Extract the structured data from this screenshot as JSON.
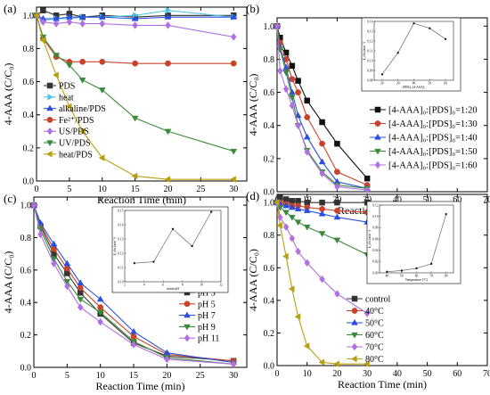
{
  "chart_data": [
    {
      "panel": "(a)",
      "type": "line",
      "xlabel": "Reaction Time (min)",
      "ylabel": "4-AAA (C/C₀)",
      "xlim": [
        0,
        32
      ],
      "ylim": [
        0,
        1.05
      ],
      "xticks": [
        0,
        5,
        10,
        15,
        20,
        25,
        30
      ],
      "yticks": [
        0.0,
        0.2,
        0.4,
        0.6,
        0.8,
        1.0
      ],
      "legend_position": "left-middle",
      "series": [
        {
          "name": "PDS",
          "color": "#333333",
          "marker": "square",
          "x": [
            0,
            1,
            3,
            5,
            7,
            10,
            15,
            20,
            30
          ],
          "y": [
            1.0,
            1.03,
            1.0,
            1.01,
            0.99,
            1.0,
            0.99,
            1.0,
            1.0
          ]
        },
        {
          "name": "heat",
          "color": "#4fc8e8",
          "marker": "triangle-right",
          "x": [
            0,
            1,
            3,
            5,
            7,
            10,
            15,
            20,
            30
          ],
          "y": [
            1.0,
            0.97,
            0.98,
            0.98,
            0.99,
            0.99,
            1.0,
            1.03,
            0.99
          ]
        },
        {
          "name": "alkaline/PDS",
          "color": "#2a4fe0",
          "marker": "triangle-up",
          "x": [
            0,
            1,
            3,
            5,
            7,
            10,
            15,
            20,
            30
          ],
          "y": [
            1.0,
            0.98,
            0.98,
            0.99,
            0.99,
            0.99,
            0.98,
            0.99,
            0.99
          ]
        },
        {
          "name": "Fe²⁺/PDS",
          "color": "#c9432a",
          "marker": "circle",
          "x": [
            0,
            1,
            3,
            5,
            7,
            10,
            15,
            20,
            30
          ],
          "y": [
            1.0,
            0.86,
            0.75,
            0.72,
            0.72,
            0.72,
            0.71,
            0.71,
            0.71
          ]
        },
        {
          "name": "US/PDS",
          "color": "#b070e0",
          "marker": "diamond",
          "x": [
            0,
            1,
            3,
            5,
            7,
            10,
            15,
            20,
            30
          ],
          "y": [
            1.0,
            0.96,
            0.95,
            0.96,
            0.95,
            0.95,
            0.94,
            0.94,
            0.87
          ]
        },
        {
          "name": "UV/PDS",
          "color": "#3a8a3a",
          "marker": "triangle-down",
          "x": [
            0,
            1,
            3,
            5,
            7,
            10,
            15,
            20,
            30
          ],
          "y": [
            1.0,
            0.87,
            0.76,
            0.7,
            0.61,
            0.55,
            0.38,
            0.3,
            0.18
          ]
        },
        {
          "name": "heat/PDS",
          "color": "#b8a010",
          "marker": "triangle-left",
          "x": [
            0,
            1,
            3,
            5,
            7,
            10,
            15,
            20,
            30
          ],
          "y": [
            1.0,
            0.85,
            0.64,
            0.45,
            0.3,
            0.14,
            0.03,
            0.01,
            0.01
          ]
        }
      ]
    },
    {
      "panel": "(b)",
      "type": "line",
      "xlabel": "Reaction Time (min)",
      "ylabel": "4-AAA (C/C₀)",
      "xlim": [
        0,
        70
      ],
      "ylim": [
        0,
        1.05
      ],
      "xticks": [
        0,
        10,
        20,
        30,
        40,
        50,
        60,
        70
      ],
      "yticks": [
        0.0,
        0.2,
        0.4,
        0.6,
        0.8,
        1.0
      ],
      "legend_position": "bottom-right",
      "series": [
        {
          "name": "[4-AAA]₀:[PDS]₀=1:20",
          "color": "#111111",
          "marker": "square",
          "x": [
            0,
            1,
            3,
            5,
            7,
            10,
            15,
            20,
            30
          ],
          "y": [
            1.0,
            0.93,
            0.84,
            0.76,
            0.67,
            0.55,
            0.42,
            0.29,
            0.08
          ]
        },
        {
          "name": "[4-AAA]₀:[PDS]₀=1:30",
          "color": "#c9432a",
          "marker": "circle",
          "x": [
            0,
            1,
            3,
            5,
            7,
            10,
            15,
            20,
            30
          ],
          "y": [
            1.0,
            0.9,
            0.8,
            0.68,
            0.6,
            0.45,
            0.29,
            0.12,
            0.04
          ]
        },
        {
          "name": "[4-AAA]₀:[PDS]₀=1:40",
          "color": "#2a4fe0",
          "marker": "triangle-up",
          "x": [
            0,
            1,
            3,
            5,
            7,
            10,
            15,
            20,
            30
          ],
          "y": [
            1.0,
            0.87,
            0.75,
            0.6,
            0.46,
            0.33,
            0.18,
            0.06,
            0.02
          ]
        },
        {
          "name": "[4-AAA]₀:[PDS]₀=1:50",
          "color": "#3a8a3a",
          "marker": "triangle-down",
          "x": [
            0,
            1,
            3,
            5,
            7,
            10,
            15,
            20,
            30
          ],
          "y": [
            1.0,
            0.86,
            0.72,
            0.57,
            0.4,
            0.25,
            0.12,
            0.04,
            0.02
          ]
        },
        {
          "name": "[4-AAA]₀:[PDS]₀=1:60",
          "color": "#b070e0",
          "marker": "diamond",
          "x": [
            0,
            1,
            3,
            5,
            7,
            10,
            15,
            20,
            30
          ],
          "y": [
            1.0,
            0.73,
            0.62,
            0.52,
            0.4,
            0.24,
            0.11,
            0.03,
            0.01
          ]
        }
      ],
      "inset": {
        "xlabel": "[PDS]₀:[4-AAA]₀",
        "ylabel": "k_obs (min⁻¹)",
        "xlim": [
          15,
          65
        ],
        "ylim": [
          0.08,
          0.14
        ],
        "xticks": [
          20,
          30,
          40,
          50,
          60
        ],
        "yticks": [
          0.08,
          0.09,
          0.1,
          0.11,
          0.12,
          0.13,
          0.14
        ],
        "x": [
          20,
          30,
          40,
          50,
          60
        ],
        "y": [
          0.086,
          0.108,
          0.138,
          0.133,
          0.122
        ]
      }
    },
    {
      "panel": "(c)",
      "type": "line",
      "xlabel": "Reaction Time (min)",
      "ylabel": "4-AAA (C/C₀)",
      "xlim": [
        0,
        32
      ],
      "ylim": [
        0,
        1.05
      ],
      "xticks": [
        0,
        5,
        10,
        15,
        20,
        25,
        30
      ],
      "yticks": [
        0.0,
        0.2,
        0.4,
        0.6,
        0.8,
        1.0
      ],
      "legend_position": "bottom-right",
      "series": [
        {
          "name": "pH 3",
          "color": "#333333",
          "marker": "square",
          "x": [
            0,
            1,
            3,
            5,
            7,
            10,
            15,
            20,
            30
          ],
          "y": [
            1.0,
            0.87,
            0.7,
            0.58,
            0.46,
            0.33,
            0.15,
            0.07,
            0.04
          ]
        },
        {
          "name": "pH 5",
          "color": "#c9432a",
          "marker": "circle",
          "x": [
            0,
            1,
            3,
            5,
            7,
            10,
            15,
            20,
            30
          ],
          "y": [
            1.0,
            0.88,
            0.73,
            0.61,
            0.49,
            0.37,
            0.19,
            0.08,
            0.04
          ]
        },
        {
          "name": "pH 7",
          "color": "#2a4fe0",
          "marker": "triangle-up",
          "x": [
            0,
            1,
            3,
            5,
            7,
            10,
            15,
            20,
            30
          ],
          "y": [
            1.0,
            0.89,
            0.76,
            0.64,
            0.52,
            0.42,
            0.22,
            0.09,
            0.03
          ]
        },
        {
          "name": "pH 9",
          "color": "#3a8a3a",
          "marker": "triangle-down",
          "x": [
            0,
            1,
            3,
            5,
            7,
            10,
            15,
            20,
            30
          ],
          "y": [
            1.0,
            0.85,
            0.67,
            0.53,
            0.42,
            0.34,
            0.16,
            0.06,
            0.02
          ]
        },
        {
          "name": "pH 11",
          "color": "#b070e0",
          "marker": "diamond",
          "x": [
            0,
            1,
            3,
            5,
            7,
            10,
            15,
            20,
            30
          ],
          "y": [
            1.0,
            0.82,
            0.64,
            0.5,
            0.37,
            0.28,
            0.14,
            0.05,
            0.02
          ]
        }
      ],
      "inset": {
        "xlabel": "initial pH",
        "ylabel": "k_obs (min⁻¹)",
        "xlim": [
          2,
          12
        ],
        "ylim": [
          0.1,
          0.15
        ],
        "xticks": [
          2,
          4,
          6,
          8,
          10,
          12
        ],
        "yticks": [
          0.1,
          0.11,
          0.12,
          0.13,
          0.14,
          0.15
        ],
        "x": [
          3,
          5,
          7,
          9,
          11
        ],
        "y": [
          0.113,
          0.114,
          0.137,
          0.125,
          0.149
        ]
      }
    },
    {
      "panel": "(d)",
      "type": "line",
      "xlabel": "Reaction Time (min)",
      "ylabel": "4-AAA (C/C₀)",
      "xlim": [
        0,
        70
      ],
      "ylim": [
        0,
        1.05
      ],
      "xticks": [
        0,
        10,
        20,
        30,
        40,
        50,
        60,
        70
      ],
      "yticks": [
        0.0,
        0.2,
        0.4,
        0.6,
        0.8,
        1.0
      ],
      "legend_position": "bottom-right",
      "series": [
        {
          "name": "control",
          "color": "#333333",
          "marker": "square",
          "x": [
            0,
            1,
            3,
            5,
            7,
            10,
            15,
            20,
            30
          ],
          "y": [
            1.0,
            1.03,
            1.02,
            1.01,
            1.01,
            1.0,
            1.0,
            1.0,
            1.0
          ]
        },
        {
          "name": "40°C",
          "color": "#c9432a",
          "marker": "circle",
          "x": [
            0,
            1,
            3,
            5,
            7,
            10,
            15,
            20,
            30
          ],
          "y": [
            1.0,
            1.0,
            0.99,
            0.98,
            0.98,
            0.97,
            0.96,
            0.95,
            0.94
          ]
        },
        {
          "name": "50°C",
          "color": "#2a4fe0",
          "marker": "triangle-up",
          "x": [
            0,
            1,
            3,
            5,
            7,
            10,
            15,
            20,
            30
          ],
          "y": [
            1.0,
            0.99,
            0.98,
            0.97,
            0.96,
            0.95,
            0.93,
            0.91,
            0.88
          ]
        },
        {
          "name": "60°C",
          "color": "#3a8a3a",
          "marker": "triangle-down",
          "x": [
            0,
            1,
            3,
            5,
            7,
            10,
            15,
            20,
            30
          ],
          "y": [
            1.0,
            0.97,
            0.94,
            0.91,
            0.88,
            0.85,
            0.81,
            0.77,
            0.68
          ]
        },
        {
          "name": "70°C",
          "color": "#b070e0",
          "marker": "diamond",
          "x": [
            0,
            1,
            3,
            5,
            7,
            10,
            15,
            20,
            30
          ],
          "y": [
            1.0,
            0.91,
            0.85,
            0.78,
            0.7,
            0.63,
            0.53,
            0.44,
            0.32
          ]
        },
        {
          "name": "80°C",
          "color": "#b8a010",
          "marker": "triangle-left",
          "x": [
            0,
            1,
            3,
            5,
            7,
            10,
            15,
            20,
            30
          ],
          "y": [
            1.0,
            0.86,
            0.67,
            0.47,
            0.3,
            0.12,
            0.02,
            0.01,
            0.01
          ]
        }
      ],
      "inset": {
        "xlabel": "Temperature (°C)",
        "ylabel": "k_obs (min⁻¹)",
        "xlim": [
          35,
          85
        ],
        "ylim": [
          0,
          0.12
        ],
        "xticks": [
          40,
          50,
          60,
          70,
          80
        ],
        "yticks": [
          0.0,
          0.02,
          0.04,
          0.06,
          0.08,
          0.1,
          0.12
        ],
        "x": [
          40,
          50,
          60,
          70,
          80
        ],
        "y": [
          0.002,
          0.004,
          0.008,
          0.016,
          0.104
        ]
      }
    }
  ]
}
